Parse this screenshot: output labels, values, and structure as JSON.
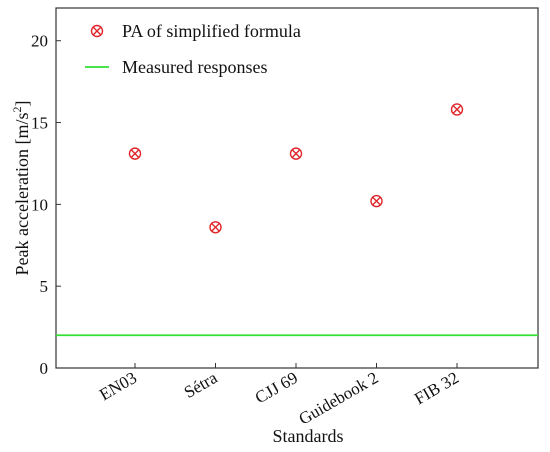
{
  "chart_data": {
    "type": "scatter",
    "title": "",
    "xlabel": "Standards",
    "ylabel": "Peak acceleration [m/s",
    "ylabel_superscript": "2",
    "ylabel_suffix": "]",
    "categories": [
      "EN03",
      "Sétra",
      "CJJ 69",
      "Guidebook 2",
      "FIB 32"
    ],
    "ylim": [
      0,
      22
    ],
    "yticks": [
      0,
      5,
      10,
      15,
      20
    ],
    "grid": false,
    "legend_position": "top-left",
    "series": [
      {
        "name": "PA of simplified formula",
        "marker": "circle-x",
        "color": "#e0262b",
        "values": [
          13.1,
          8.6,
          13.1,
          10.2,
          15.8
        ]
      },
      {
        "name": "Measured responses",
        "type": "hline",
        "color": "#33e033",
        "value": 2.0
      }
    ]
  }
}
